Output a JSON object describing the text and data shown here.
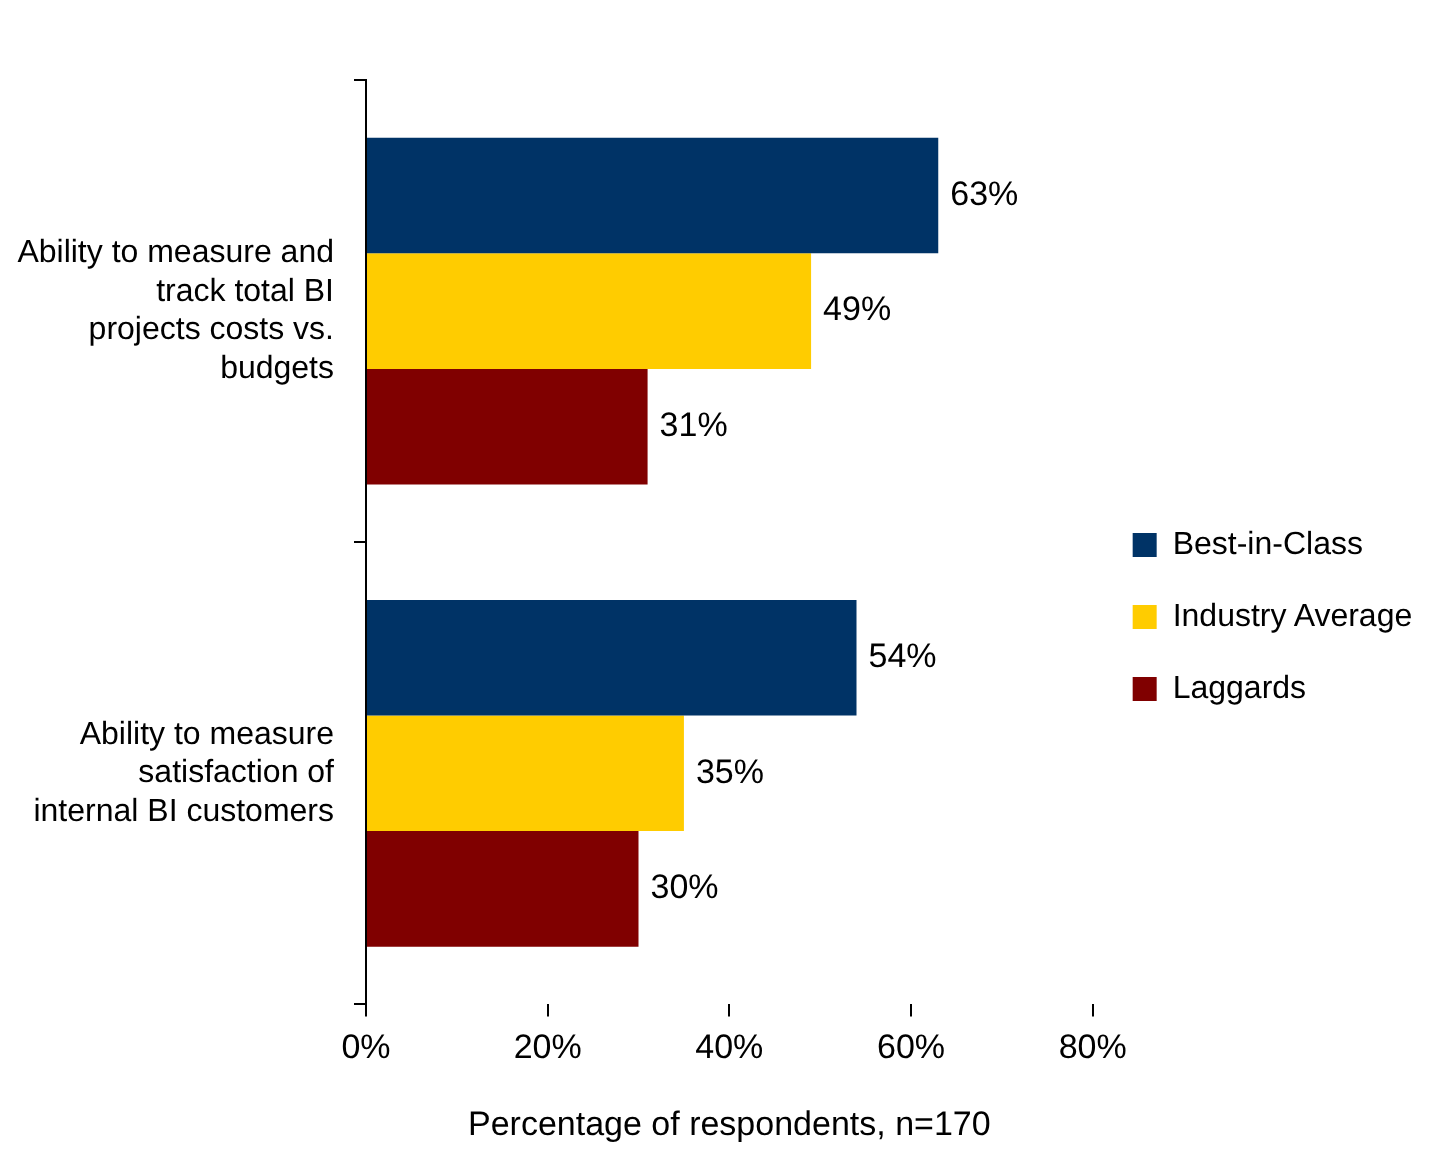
{
  "chart_data": {
    "type": "bar",
    "orientation": "horizontal",
    "xlabel": "Percentage of respondents, n=170",
    "categories": [
      "Ability to measure and track total BI projects costs vs. budgets",
      "Ability to measure satisfaction of internal BI customers"
    ],
    "series": [
      {
        "name": "Best-in-Class",
        "color": "#003366",
        "values": [
          63,
          54
        ],
        "value_labels": [
          "63%",
          "54%"
        ]
      },
      {
        "name": "Industry Average",
        "color": "#ffcc00",
        "values": [
          49,
          35
        ],
        "value_labels": [
          "49%",
          "35%"
        ]
      },
      {
        "name": "Laggards",
        "color": "#800000",
        "values": [
          31,
          30
        ],
        "value_labels": [
          "31%",
          "30%"
        ]
      }
    ],
    "xlim": [
      0,
      80
    ],
    "xticks": [
      {
        "value": 0,
        "label": "0%"
      },
      {
        "value": 20,
        "label": "20%"
      },
      {
        "value": 40,
        "label": "40%"
      },
      {
        "value": 60,
        "label": "60%"
      },
      {
        "value": 80,
        "label": "80%"
      }
    ],
    "grid": false,
    "legend": "right"
  }
}
